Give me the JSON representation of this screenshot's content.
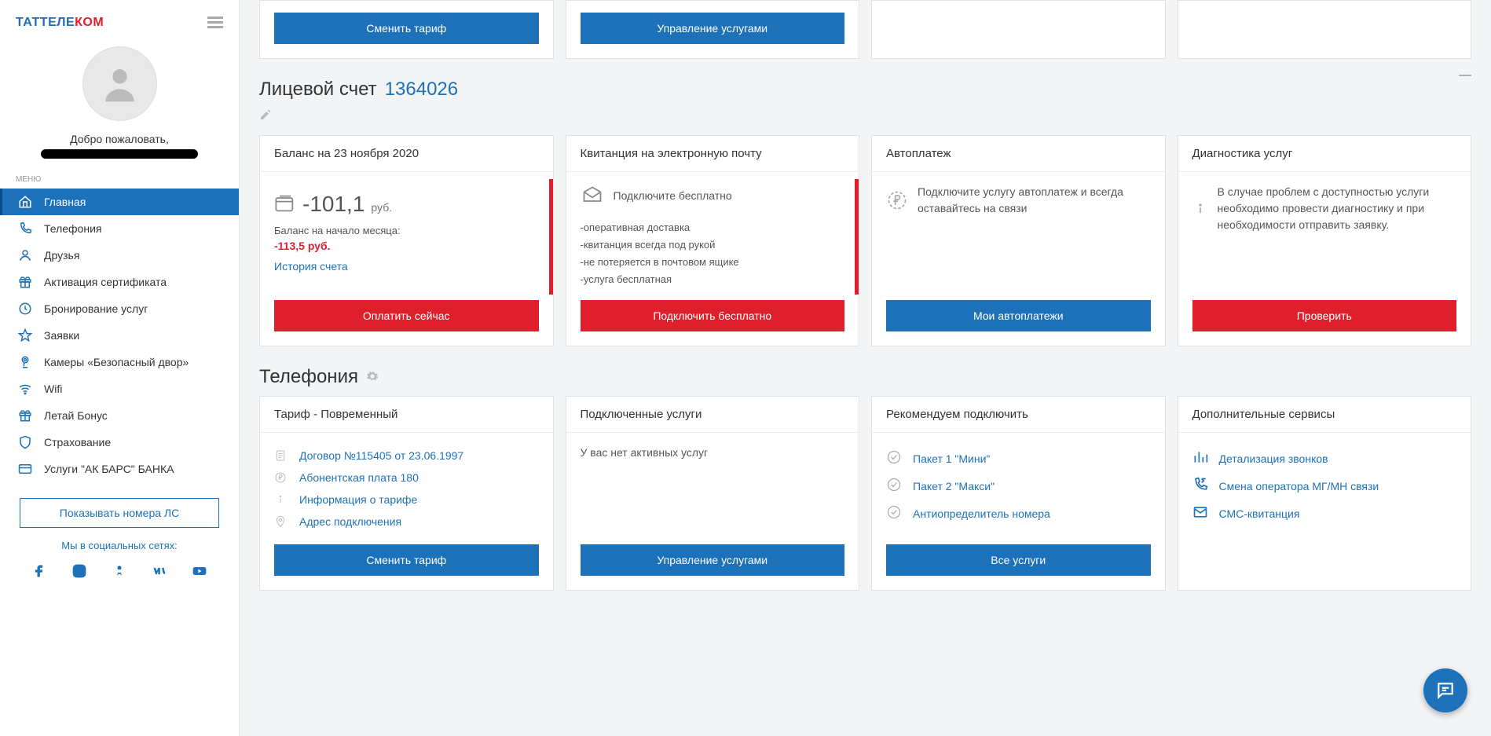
{
  "logo": {
    "part1": "ТАТТЕЛЕ",
    "part2": "КОМ"
  },
  "profile": {
    "welcome": "Добро пожаловать,"
  },
  "menu_label": "МЕНЮ",
  "menu": [
    {
      "label": "Главная",
      "active": true,
      "icon": "home"
    },
    {
      "label": "Телефония",
      "active": false,
      "icon": "phone"
    },
    {
      "label": "Друзья",
      "active": false,
      "icon": "user"
    },
    {
      "label": "Активация сертификата",
      "active": false,
      "icon": "gift"
    },
    {
      "label": "Бронирование услуг",
      "active": false,
      "icon": "clock"
    },
    {
      "label": "Заявки",
      "active": false,
      "icon": "star"
    },
    {
      "label": "Камеры «Безопасный двор»",
      "active": false,
      "icon": "cam"
    },
    {
      "label": "Wifi",
      "active": false,
      "icon": "wifi"
    },
    {
      "label": "Летай Бонус",
      "active": false,
      "icon": "gift"
    },
    {
      "label": "Страхование",
      "active": false,
      "icon": "shield"
    },
    {
      "label": "Услуги \"АК БАРС\" БАНКА",
      "active": false,
      "icon": "card"
    }
  ],
  "show_ls_btn": "Показывать номера ЛС",
  "social_label": "Мы в социальных сетях:",
  "top_buttons": {
    "change_tariff": "Сменить тариф",
    "manage_services": "Управление услугами"
  },
  "account": {
    "title_prefix": "Лицевой счет",
    "number": "1364026"
  },
  "balance_card": {
    "title": "Баланс на 23 ноября 2020",
    "amount": "-101,1",
    "currency": "руб.",
    "start_label": "Баланс на начало месяца:",
    "start_amount": "-113,5 руб.",
    "history_link": "История счета",
    "pay_btn": "Оплатить сейчас"
  },
  "invoice_card": {
    "title": "Квитанция на электронную почту",
    "connect_free": "Подключите бесплатно",
    "lines": [
      "-оперативная доставка",
      "-квитанция всегда под рукой",
      "-не потеряется в почтовом ящике",
      "-услуга бесплатная"
    ],
    "btn": "Подключить бесплатно"
  },
  "autopay_card": {
    "title": "Автоплатеж",
    "text": "Подключите услугу автоплатеж и всегда оставайтесь на связи",
    "btn": "Мои автоплатежи"
  },
  "diag_card": {
    "title": "Диагностика услуг",
    "text": "В случае проблем с доступностью услуги необходимо провести диагностику и при необходимости отправить заявку.",
    "btn": "Проверить"
  },
  "telephony": {
    "title": "Телефония",
    "tariff": {
      "title": "Тариф - Повременный",
      "items": [
        {
          "icon": "doc",
          "text": "Договор №115405 от 23.06.1997",
          "link": true
        },
        {
          "icon": "ruble",
          "text": "Абонентская плата 180",
          "link": true
        },
        {
          "icon": "info",
          "text": "Информация о тарифе",
          "link": true
        },
        {
          "icon": "pin",
          "text": "Адрес подключения",
          "link": true
        }
      ],
      "btn": "Сменить тариф"
    },
    "connected": {
      "title": "Подключенные услуги",
      "empty": "У вас нет активных услуг",
      "btn": "Управление услугами"
    },
    "recommend": {
      "title": "Рекомендуем подключить",
      "items": [
        {
          "text": "Пакет 1 \"Мини\""
        },
        {
          "text": "Пакет 2 \"Макси\""
        },
        {
          "text": "Антиопределитель номера"
        }
      ],
      "btn": "Все услуги"
    },
    "additional": {
      "title": "Дополнительные сервисы",
      "items": [
        {
          "icon": "bars",
          "text": "Детализация звонков"
        },
        {
          "icon": "arrows",
          "text": "Смена оператора МГ/МН связи"
        },
        {
          "icon": "envelope",
          "text": "СМС-квитанция"
        }
      ]
    }
  },
  "colors": {
    "primary": "#1d71b8",
    "danger": "#e01f2d",
    "bg": "#f3f4f5",
    "card_border": "#e1e1e1"
  }
}
